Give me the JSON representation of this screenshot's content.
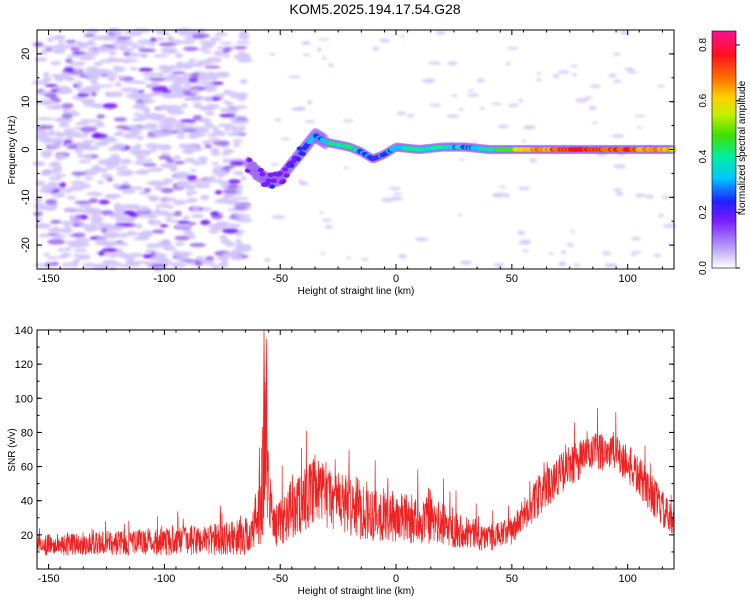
{
  "title": "KOM5.2025.194.17.54.G28",
  "chart_data": [
    {
      "type": "heatmap",
      "xlabel": "Height of straight line (km)",
      "ylabel": "Frequency (Hz)",
      "xlim": [
        -155,
        120
      ],
      "ylim": [
        -25,
        25
      ],
      "xticks": [
        -150,
        -100,
        -50,
        0,
        50,
        100
      ],
      "yticks": [
        -20,
        -10,
        0,
        10,
        20
      ],
      "colorbar": {
        "label": "Normalized spectral amplitude",
        "range": [
          0,
          0.85
        ],
        "ticks": [
          0.0,
          0.2,
          0.4,
          0.6,
          0.8
        ]
      },
      "ridge": {
        "x": [
          -64,
          -60,
          -55,
          -50,
          -45,
          -40,
          -35,
          -30,
          -20,
          -15,
          -10,
          -5,
          0,
          10,
          20,
          30,
          40,
          60,
          80,
          100,
          120
        ],
        "y": [
          -3,
          -5,
          -6.5,
          -6,
          -3,
          0,
          3,
          1.5,
          0.5,
          -0.5,
          -2,
          -1,
          0.5,
          0,
          0.5,
          0.5,
          0,
          0,
          0,
          0,
          0
        ],
        "amplitude": [
          0.18,
          0.2,
          0.25,
          0.3,
          0.25,
          0.35,
          0.4,
          0.45,
          0.5,
          0.4,
          0.3,
          0.35,
          0.45,
          0.5,
          0.45,
          0.4,
          0.45,
          0.7,
          0.8,
          0.75,
          0.7
        ]
      }
    },
    {
      "type": "line",
      "xlabel": "Height of straight line (km)",
      "ylabel": "SNR (v/v)",
      "xlim": [
        -155,
        120
      ],
      "ylim": [
        0,
        140
      ],
      "xticks": [
        -150,
        -100,
        -50,
        0,
        50,
        100
      ],
      "yticks": [
        20,
        40,
        60,
        80,
        100,
        120,
        140
      ],
      "color": "#ee2222",
      "envelope": {
        "x": [
          -155,
          -130,
          -100,
          -70,
          -62,
          -58,
          -56,
          -55,
          -52,
          -45,
          -35,
          -25,
          -15,
          0,
          15,
          30,
          40,
          50,
          60,
          70,
          80,
          90,
          95,
          100,
          110,
          120
        ],
        "mean": [
          14,
          15,
          16,
          18,
          20,
          45,
          80,
          40,
          25,
          35,
          45,
          40,
          35,
          30,
          28,
          22,
          18,
          22,
          40,
          55,
          65,
          70,
          68,
          62,
          45,
          25
        ],
        "spread": [
          6,
          7,
          8,
          10,
          12,
          30,
          55,
          25,
          12,
          18,
          20,
          18,
          18,
          15,
          14,
          10,
          8,
          8,
          12,
          12,
          12,
          12,
          12,
          12,
          12,
          10
        ]
      }
    }
  ]
}
